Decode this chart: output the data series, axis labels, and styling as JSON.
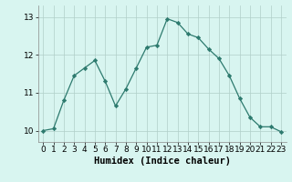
{
  "x": [
    0,
    1,
    2,
    3,
    4,
    5,
    6,
    7,
    8,
    9,
    10,
    11,
    12,
    13,
    14,
    15,
    16,
    17,
    18,
    19,
    20,
    21,
    22,
    23
  ],
  "y": [
    10.0,
    10.05,
    10.8,
    11.45,
    11.65,
    11.85,
    11.3,
    10.65,
    11.1,
    11.65,
    12.2,
    12.25,
    12.95,
    12.85,
    12.55,
    12.45,
    12.15,
    11.9,
    11.45,
    10.85,
    10.35,
    10.1,
    10.1,
    9.97
  ],
  "line_color": "#2d7a6e",
  "marker": "D",
  "markersize": 2.2,
  "bg_color": "#d8f5f0",
  "grid_color": "#b0cfc9",
  "xlabel": "Humidex (Indice chaleur)",
  "ylim": [
    9.7,
    13.3
  ],
  "xlim": [
    -0.5,
    23.5
  ],
  "yticks": [
    10,
    11,
    12,
    13
  ],
  "xticks": [
    0,
    1,
    2,
    3,
    4,
    5,
    6,
    7,
    8,
    9,
    10,
    11,
    12,
    13,
    14,
    15,
    16,
    17,
    18,
    19,
    20,
    21,
    22,
    23
  ],
  "tick_fontsize": 6.5,
  "xlabel_fontsize": 7.5,
  "linewidth": 0.9
}
